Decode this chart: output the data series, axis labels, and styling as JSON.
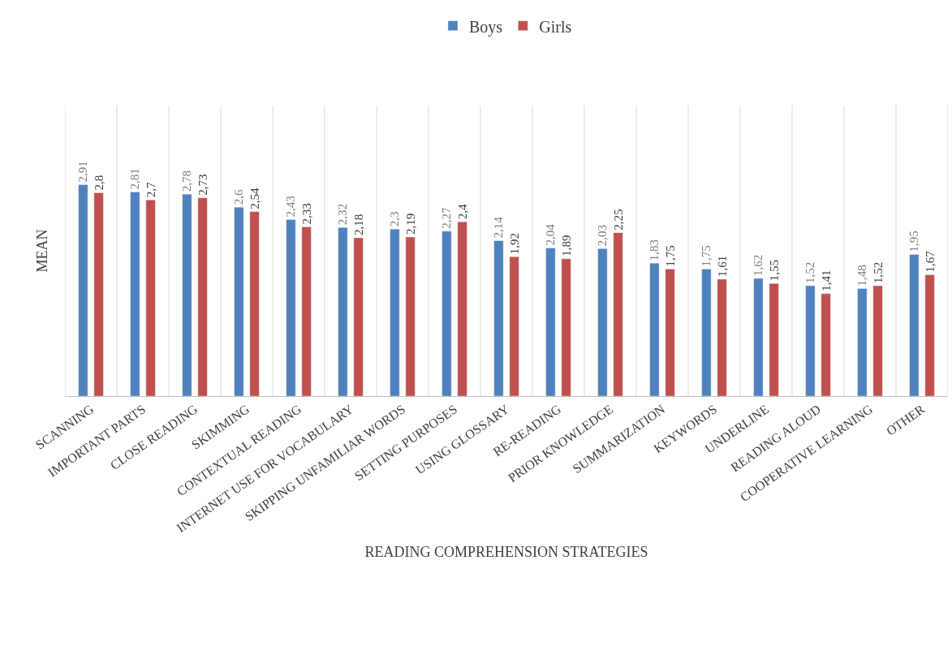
{
  "chart_data": {
    "type": "bar",
    "xlabel": "READING COMPREHENSION STRATEGIES",
    "ylabel": "MEAN",
    "categories": [
      "SCANNING",
      "IMPORTANT PARTS",
      "CLOSE READING",
      "SKIMMING",
      "CONTEXTUAL READING",
      "INTERNET USE FOR VOCABULARY",
      "SKIPPING UNFAMILIAR WORDS",
      "SETTING PURPOSES",
      "USING GLOSSARY",
      "RE-READING",
      "PRIOR KNOWLEDGE",
      "SUMMARIZATION",
      "KEYWORDS",
      "UNDERLINE",
      "READING ALOUD",
      "COOPERATIVE LEARNING",
      "OTHER"
    ],
    "series": [
      {
        "name": "Boys",
        "color": "#4f81bd",
        "values": [
          2.91,
          2.81,
          2.78,
          2.6,
          2.43,
          2.32,
          2.3,
          2.27,
          2.14,
          2.04,
          2.03,
          1.83,
          1.75,
          1.62,
          1.52,
          1.48,
          1.95
        ],
        "value_labels": [
          "2,91",
          "2,81",
          "2,78",
          "2,6",
          "2,43",
          "2,32",
          "2,3",
          "2,27",
          "2,14",
          "2,04",
          "2,03",
          "1,83",
          "1,75",
          "1,62",
          "1,52",
          "1,48",
          "1,95"
        ]
      },
      {
        "name": "Girls",
        "color": "#c0504d",
        "values": [
          2.8,
          2.7,
          2.73,
          2.54,
          2.33,
          2.18,
          2.19,
          2.4,
          1.92,
          1.89,
          2.25,
          1.75,
          1.61,
          1.55,
          1.41,
          1.52,
          1.67
        ],
        "value_labels": [
          "2,8",
          "2,7",
          "2,73",
          "2,54",
          "2,33",
          "2,18",
          "2,19",
          "2,4",
          "1,92",
          "1,89",
          "2,25",
          "1,75",
          "1,61",
          "1,55",
          "1,41",
          "1,52",
          "1,67"
        ]
      }
    ],
    "ylim": [
      0,
      4
    ],
    "grid": "x",
    "legend": "top",
    "tick_labels": "x"
  }
}
